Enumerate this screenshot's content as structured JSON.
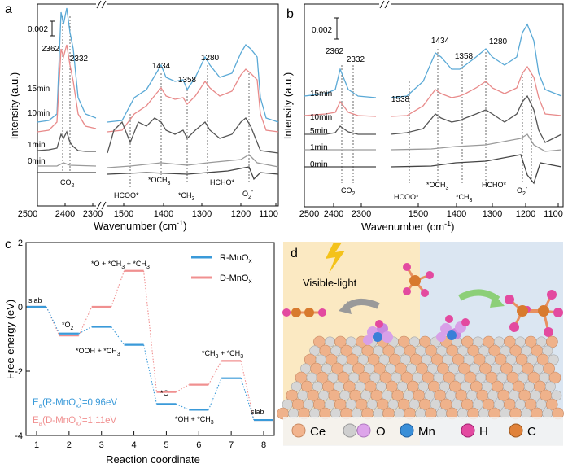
{
  "panels": {
    "a": {
      "letter": "a",
      "scale": "0.002",
      "y_label": "Intensity (a.u.)",
      "x_label_pre": "Wavenumber (cm",
      "x_label_sup": "-1",
      "x_label_post": ")",
      "ticks": [
        "2500",
        "2400",
        "2300",
        "1500",
        "1400",
        "1300",
        "1200",
        "1100"
      ],
      "time_labels": [
        "15min",
        "10min",
        "1min",
        "0min"
      ],
      "peak_labels": [
        "2362",
        "2332",
        "1434",
        "1358",
        "1280"
      ],
      "species": {
        "co2": "CO",
        "co2_sub": "2",
        "hcoo": "HCOO*",
        "och3": "*OCH",
        "och3_sub": "3",
        "ch3": "*CH",
        "ch3_sub": "3",
        "hcho": "HCHO*",
        "o2": "O",
        "o2_sub": "2",
        "o2_sup": "-"
      }
    },
    "b": {
      "letter": "b",
      "scale": "0.002",
      "y_label": "Intensity (a.u.)",
      "x_label_pre": "Wavenumber (cm",
      "x_label_sup": "-1",
      "x_label_post": ")",
      "ticks": [
        "2500",
        "2400",
        "2300",
        "1500",
        "1400",
        "1300",
        "1200",
        "1100"
      ],
      "time_labels": [
        "15min",
        "10min",
        "5min",
        "1min",
        "0min"
      ],
      "peak_labels": [
        "2362",
        "2332",
        "1538",
        "1434",
        "1358",
        "1280"
      ],
      "species": {
        "co2": "CO",
        "co2_sub": "2",
        "hcoo": "HCOO*",
        "och3": "*OCH",
        "och3_sub": "3",
        "ch3": "*CH",
        "ch3_sub": "3",
        "hcho": "HCHO*",
        "o2": "O",
        "o2_sub": "2",
        "o2_sup": "-"
      }
    },
    "d": {
      "letter": "d",
      "visible_light": "Visible-light",
      "legend": [
        "Ce",
        "O",
        "Mn",
        "H",
        "C"
      ]
    }
  },
  "chart_data": [
    {
      "type": "line",
      "panel": "a",
      "title": "",
      "xlabel": "Wavenumber (cm-1)",
      "ylabel": "Intensity (a.u.)",
      "x_ranges": [
        [
          2500,
          2270
        ],
        [
          1600,
          1100
        ]
      ],
      "series": [
        {
          "name": "15min",
          "color": "#5aa9d6"
        },
        {
          "name": "10min",
          "color": "#e88a8a"
        },
        {
          "name": "1min",
          "color": "#555555"
        },
        {
          "name": "0min",
          "color": "#9a9a9a"
        }
      ],
      "peaks": [
        2362,
        2332,
        1434,
        1358,
        1280
      ]
    },
    {
      "type": "line",
      "panel": "b",
      "title": "",
      "xlabel": "Wavenumber (cm-1)",
      "ylabel": "Intensity (a.u.)",
      "x_ranges": [
        [
          2500,
          2270
        ],
        [
          1600,
          1100
        ]
      ],
      "series": [
        {
          "name": "15min",
          "color": "#5aa9d6"
        },
        {
          "name": "10min",
          "color": "#e88a8a"
        },
        {
          "name": "5min",
          "color": "#555555"
        },
        {
          "name": "1min",
          "color": "#9a9a9a"
        },
        {
          "name": "0min",
          "color": "#444444"
        }
      ],
      "peaks": [
        2362,
        2332,
        1538,
        1434,
        1358,
        1280
      ]
    },
    {
      "type": "line",
      "panel": "c",
      "letter": "c",
      "title": "",
      "xlabel": "Reaction coordinate",
      "ylabel": "Free energy (eV)",
      "xlim": [
        1,
        8
      ],
      "ylim": [
        -4,
        2
      ],
      "x_ticks": [
        1,
        2,
        3,
        4,
        5,
        6,
        7,
        8
      ],
      "y_ticks": [
        2,
        0,
        -2,
        -4
      ],
      "legend_r": "R-MnO",
      "legend_r_sub": "x",
      "legend_d": "D-MnO",
      "legend_d_sub": "x",
      "ea_r_pre": "E",
      "ea_r_sub1": "a",
      "ea_r_mid": "(R-MnO",
      "ea_r_sub2": "x",
      "ea_r_post": ")=0.96eV",
      "ea_d_pre": "E",
      "ea_d_sub1": "a",
      "ea_d_mid": "(D-MnO",
      "ea_d_sub2": "x",
      "ea_d_post": ")=1.11eV",
      "state_labels": {
        "slab1": "slab",
        "o2": "*O",
        "o2_sub": "2",
        "o_ch3": "*O + *CH",
        "o_ch3_sub": "3",
        "o_ch3_mid": " + *CH",
        "o_ch3_sub2": "3",
        "ooh": "*OOH + *CH",
        "ooh_sub": "3",
        "o": "*O",
        "oh": "*OH + *CH",
        "oh_sub": "3",
        "ch3ch3": "*CH",
        "ch3ch3_sub": "3",
        "ch3ch3_mid": " + *CH",
        "ch3ch3_sub2": "3",
        "slab2": "slab"
      },
      "series": [
        {
          "name": "R-MnOx",
          "color": "#3a9ad9",
          "x": [
            1,
            2,
            3,
            4,
            5,
            6,
            7,
            8
          ],
          "y": [
            0,
            -0.83,
            -0.62,
            -1.18,
            -3.02,
            -3.2,
            -2.22,
            -3.52
          ]
        },
        {
          "name": "D-MnOx",
          "color": "#f09090",
          "x": [
            1,
            2,
            3,
            4,
            5,
            6,
            7,
            8
          ],
          "y": [
            0,
            -0.89,
            0.0,
            1.12,
            -2.65,
            -2.42,
            -1.68,
            -3.52
          ]
        }
      ]
    }
  ]
}
